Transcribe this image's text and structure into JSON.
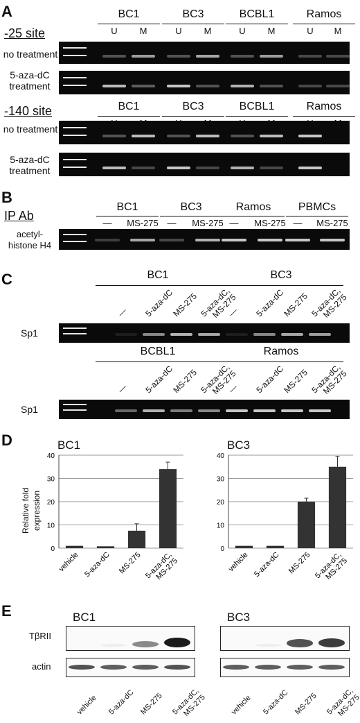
{
  "panelA": {
    "label": "A",
    "groups": [
      "BC1",
      "BC3",
      "BCBL1",
      "Ramos"
    ],
    "lane_u": "U",
    "lane_m": "M",
    "sites": [
      {
        "title": "-25 site",
        "rows": [
          "no treatment",
          "5-aza-dC\ntreatment"
        ]
      },
      {
        "title": "-140 site",
        "rows": [
          "no treatment",
          "5-aza-dC\ntreatment"
        ]
      }
    ],
    "bands": [
      [
        [
          0.35,
          0.7
        ],
        [
          0.35,
          0.75
        ],
        [
          0.35,
          0.7
        ],
        [
          0.3,
          0.3
        ]
      ],
      [
        [
          0.85,
          0.4
        ],
        [
          0.9,
          0.35
        ],
        [
          0.8,
          0.35
        ],
        [
          0.3,
          0.3
        ]
      ],
      [
        [
          0.35,
          0.85
        ],
        [
          0.35,
          0.85
        ],
        [
          0.35,
          0.85
        ],
        [
          0.9,
          0
        ]
      ],
      [
        [
          0.85,
          0.3
        ],
        [
          0.9,
          0.3
        ],
        [
          0.8,
          0.3
        ],
        [
          0.9,
          0
        ]
      ]
    ]
  },
  "panelB": {
    "label": "B",
    "ip_ab": "IP Ab",
    "row": "acetyl-\nhistone H4",
    "groups": [
      "BC1",
      "BC3",
      "Ramos",
      "PBMCs"
    ],
    "lanes": [
      "—",
      "MS-275"
    ],
    "bands": [
      [
        0.25,
        0.75
      ],
      [
        0.3,
        0.8
      ],
      [
        0.9,
        0.9
      ],
      [
        0.9,
        0.9
      ]
    ]
  },
  "panelC": {
    "label": "C",
    "row_label": "Sp1",
    "lanes": [
      "—",
      "5-aza-dC",
      "MS-275",
      "5-aza-dC,\nMS-275"
    ],
    "blocks": [
      {
        "groups": [
          "BC1",
          "BC3"
        ],
        "bands": [
          [
            0.1,
            0.6,
            0.8,
            0.75
          ],
          [
            0.1,
            0.6,
            0.75,
            0.7
          ]
        ]
      },
      {
        "groups": [
          "BCBL1",
          "Ramos"
        ],
        "bands": [
          [
            0.45,
            0.8,
            0.55,
            0.6
          ],
          [
            0.9,
            0.9,
            0.9,
            0.9
          ]
        ]
      }
    ]
  },
  "panelD": {
    "label": "D",
    "ylabel": "Relative fold\nexpression",
    "categories": [
      "vehicle",
      "5-aza-dC",
      "MS-275",
      "5-aza-dC,\nMS-275"
    ],
    "ymax": 40,
    "yticks": [
      "0",
      "10",
      "20",
      "30",
      "40"
    ]
  },
  "chart_data": [
    {
      "type": "bar",
      "title": "BC1",
      "categories": [
        "vehicle",
        "5-aza-dC",
        "MS-275",
        "5-aza-dC, MS-275"
      ],
      "values": [
        1,
        0.8,
        7.5,
        34
      ],
      "errors": [
        0,
        0,
        3,
        3
      ],
      "ylabel": "Relative fold expression",
      "ylim": [
        0,
        40
      ],
      "grid": true
    },
    {
      "type": "bar",
      "title": "BC3",
      "categories": [
        "vehicle",
        "5-aza-dC",
        "MS-275",
        "5-aza-dC, MS-275"
      ],
      "values": [
        1,
        1,
        20,
        35
      ],
      "errors": [
        0,
        0,
        1.5,
        4.5
      ],
      "ylabel": "",
      "ylim": [
        0,
        40
      ],
      "grid": true
    }
  ],
  "panelE": {
    "label": "E",
    "titles": [
      "BC1",
      "BC3"
    ],
    "rows": [
      "TβRII",
      "actin"
    ],
    "categories": [
      "vehicle",
      "5-aza-dC",
      "MS-275",
      "5-aza-dC,\nMS-275"
    ],
    "tbr": [
      [
        0,
        0.05,
        0.5,
        1
      ],
      [
        0,
        0.05,
        0.75,
        0.85
      ]
    ],
    "actin": [
      [
        0.75,
        0.7,
        0.7,
        0.75
      ],
      [
        0.7,
        0.7,
        0.7,
        0.7
      ]
    ]
  }
}
